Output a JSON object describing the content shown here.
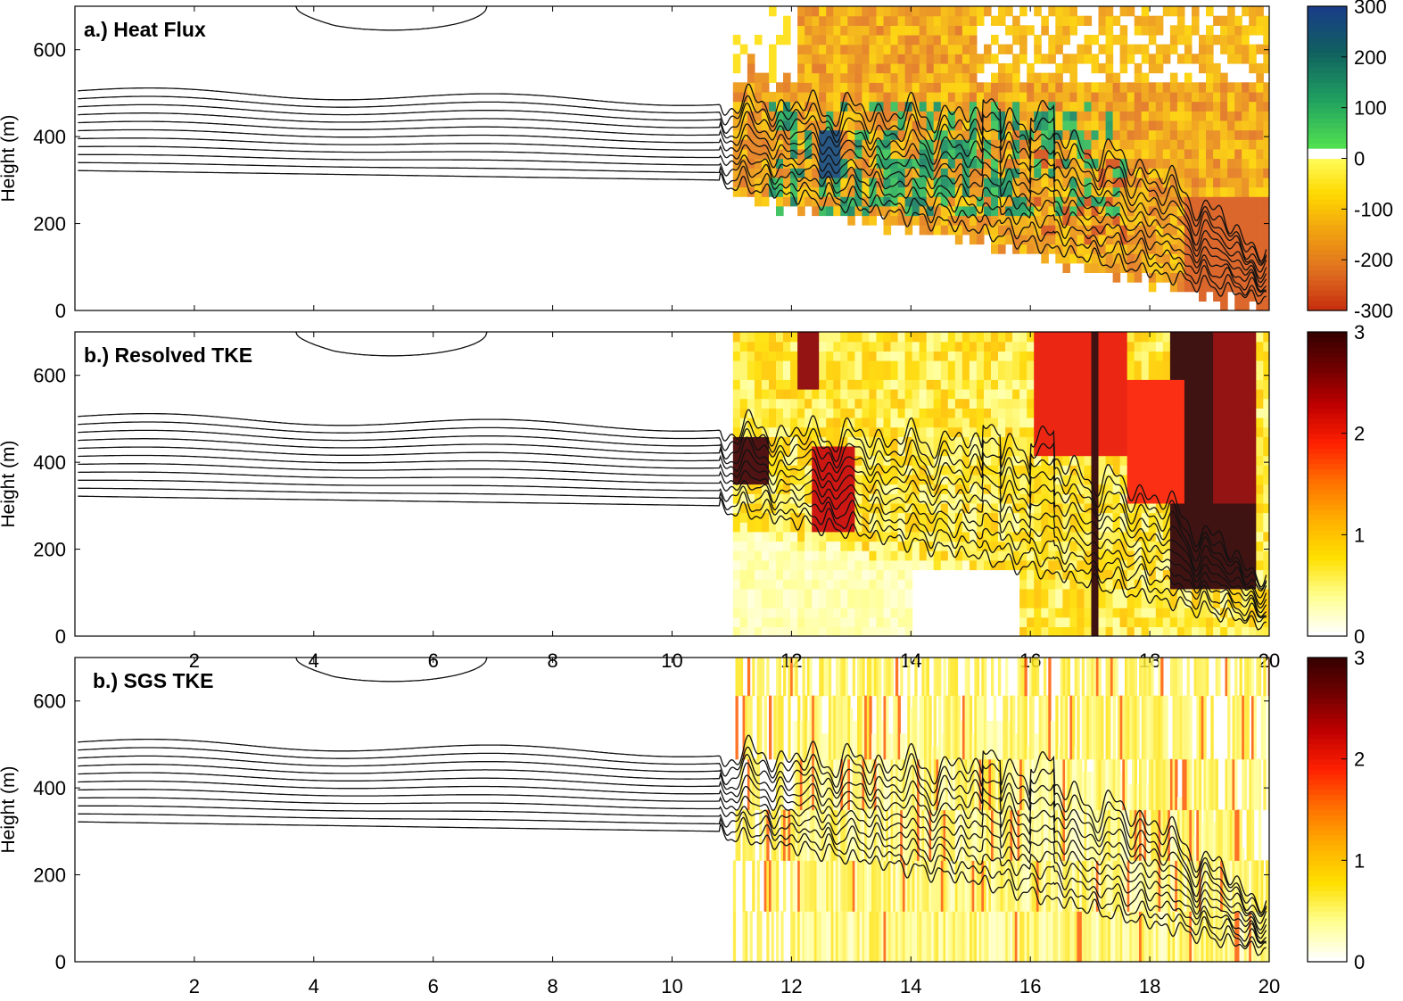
{
  "chart_data": [
    {
      "type": "heatmap",
      "title": "a.) Heat Flux",
      "ylabel": "Height (m)",
      "xlabel": "",
      "xlim": [
        0,
        20
      ],
      "ylim": [
        0,
        700
      ],
      "xticks": [
        2,
        4,
        6,
        8,
        10,
        12,
        14,
        16,
        18,
        20
      ],
      "xtick_labels": [],
      "yticks": [
        0,
        200,
        400,
        600
      ],
      "ytick_labels": [
        "0",
        "200",
        "400",
        "600"
      ],
      "colorbar": {
        "range": [
          -300,
          300
        ],
        "ticks": [
          300,
          200,
          100,
          0,
          -100,
          -200,
          -300
        ],
        "tick_labels": [
          "300",
          "200",
          "100",
          "0",
          "-100",
          "-200",
          "-300"
        ],
        "colors": [
          "#c83010",
          "#e07020",
          "#f0a010",
          "#ffd800",
          "#ffff60",
          "#ffffff",
          "#50e050",
          "#20a060",
          "#106060",
          "#1a3a8a"
        ]
      },
      "field": "heat-flux",
      "contours": "isentropes"
    },
    {
      "type": "heatmap",
      "title": "b.) Resolved TKE",
      "ylabel": "Height (m)",
      "xlabel": "",
      "xlim": [
        0,
        20
      ],
      "ylim": [
        0,
        700
      ],
      "xticks": [
        2,
        4,
        6,
        8,
        10,
        12,
        14,
        16,
        18,
        20
      ],
      "xtick_labels": [
        "2",
        "4",
        "6",
        "8",
        "10",
        "12",
        "14",
        "16",
        "18",
        "20"
      ],
      "yticks": [
        0,
        200,
        400,
        600
      ],
      "ytick_labels": [
        "0",
        "200",
        "400",
        "600"
      ],
      "colorbar": {
        "range": [
          0,
          3
        ],
        "ticks": [
          3,
          2,
          1,
          0
        ],
        "tick_labels": [
          "3",
          "2",
          "1",
          "0"
        ],
        "colors": [
          "#ffffff",
          "#ffff90",
          "#ffe000",
          "#ffb000",
          "#ff7000",
          "#ff2000",
          "#c00000",
          "#700000",
          "#300000"
        ]
      },
      "field": "tke-resolved",
      "contours": "isentropes"
    },
    {
      "type": "heatmap",
      "title": "b.) SGS TKE",
      "ylabel": "Height (m)",
      "xlabel": "",
      "xlim": [
        0,
        20
      ],
      "ylim": [
        0,
        700
      ],
      "xticks": [
        2,
        4,
        6,
        8,
        10,
        12,
        14,
        16,
        18,
        20
      ],
      "xtick_labels": [
        "2",
        "4",
        "6",
        "8",
        "10",
        "12",
        "14",
        "16",
        "18",
        "20"
      ],
      "yticks": [
        0,
        200,
        400,
        600
      ],
      "ytick_labels": [
        "0",
        "200",
        "400",
        "600"
      ],
      "colorbar": {
        "range": [
          0,
          3
        ],
        "ticks": [
          3,
          2,
          1,
          0
        ],
        "tick_labels": [
          "3",
          "2",
          "1",
          "0"
        ],
        "colors": [
          "#ffffff",
          "#ffff90",
          "#ffe000",
          "#ffb000",
          "#ff7000",
          "#ff2000",
          "#c00000",
          "#700000",
          "#300000"
        ]
      },
      "field": "tke-sgs",
      "contours": "isentropes"
    }
  ]
}
